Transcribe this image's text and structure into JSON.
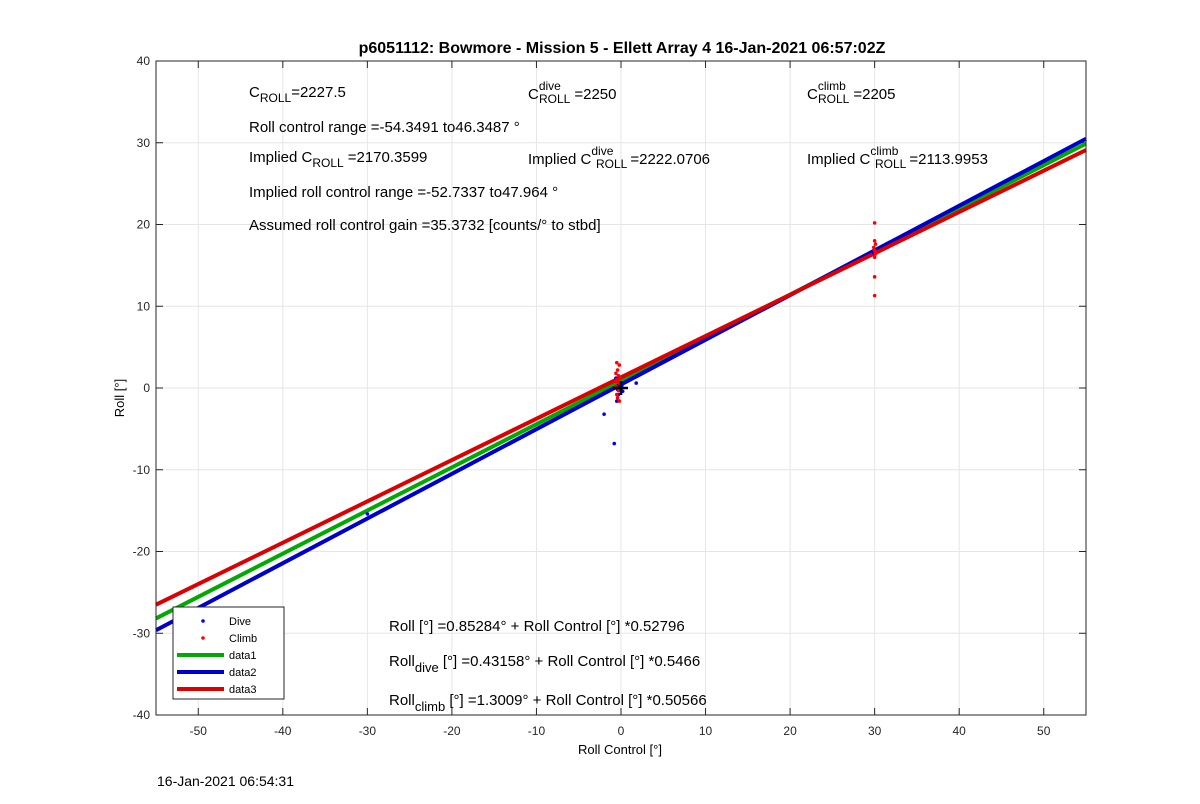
{
  "footer_timestamp": "16-Jan-2021 06:54:31",
  "chart_data": {
    "type": "scatter",
    "title": "p6051112: Bowmore - Mission 5 - Ellett Array 4 16-Jan-2021 06:57:02Z",
    "xlabel": "Roll Control [°]",
    "ylabel": "Roll [°]",
    "xlim": [
      -55,
      55
    ],
    "ylim": [
      -40,
      40
    ],
    "xticks": [
      -50,
      -40,
      -30,
      -20,
      -10,
      0,
      10,
      20,
      30,
      40,
      50
    ],
    "yticks": [
      -40,
      -30,
      -20,
      -10,
      0,
      10,
      20,
      30,
      40
    ],
    "grid": true,
    "legend_location": "bottom-left",
    "scatter_series": [
      {
        "name": "Dive",
        "color": "#0000ff",
        "marker": "dot",
        "points": [
          [
            -30,
            -15.4
          ],
          [
            -2,
            -3.2
          ],
          [
            -0.8,
            -6.8
          ],
          [
            -0.5,
            -1.6
          ],
          [
            -0.3,
            -0.8
          ],
          [
            -0.5,
            0.2
          ],
          [
            -0.2,
            0.6
          ],
          [
            0.2,
            -0.4
          ],
          [
            -0.6,
            1.2
          ],
          [
            -0.4,
            -0.2
          ],
          [
            0.1,
            0.3
          ],
          [
            1.8,
            0.6
          ],
          [
            30,
            16.8
          ],
          [
            29.9,
            16.5
          ]
        ]
      },
      {
        "name": "Climb",
        "color": "#ff0000",
        "marker": "dot",
        "points": [
          [
            -0.5,
            3.1
          ],
          [
            -0.2,
            2.8
          ],
          [
            -0.4,
            2.2
          ],
          [
            -0.6,
            1.8
          ],
          [
            -0.3,
            1.5
          ],
          [
            -0.5,
            1.0
          ],
          [
            -0.2,
            0.6
          ],
          [
            -0.6,
            0.2
          ],
          [
            -0.3,
            -0.3
          ],
          [
            -0.5,
            -0.8
          ],
          [
            -0.4,
            -1.2
          ],
          [
            -0.2,
            -1.6
          ],
          [
            -0.6,
            0.8
          ],
          [
            -0.1,
            1.3
          ],
          [
            30,
            20.2
          ],
          [
            30,
            18.0
          ],
          [
            30.1,
            17.6
          ],
          [
            29.9,
            17.2
          ],
          [
            30,
            16.8
          ],
          [
            30.1,
            16.4
          ],
          [
            30,
            16.0
          ],
          [
            30,
            13.6
          ],
          [
            30,
            11.3
          ]
        ]
      }
    ],
    "line_series": [
      {
        "name": "data1",
        "color": "#00aa00",
        "intercept": 0.85284,
        "slope": 0.52796
      },
      {
        "name": "data2",
        "color": "#0000cc",
        "intercept": 0.43158,
        "slope": 0.5466
      },
      {
        "name": "data3",
        "color": "#dd0000",
        "intercept": 1.3009,
        "slope": 0.50566
      }
    ],
    "center_marker": "+",
    "annotations": {
      "c_roll": {
        "base": "C",
        "sub": "ROLL",
        "value": "=2227.5"
      },
      "c_roll_dive": {
        "base": "C",
        "sup": "dive",
        "sub": "ROLL",
        "value": "=2250"
      },
      "c_roll_climb": {
        "base": "C",
        "sup": "climb",
        "sub": "ROLL",
        "value": "=2205"
      },
      "roll_control_range": "Roll control range =-54.3491 to46.3487 °",
      "implied_c_roll": {
        "prefix": "Implied C",
        "sub": "ROLL",
        "value": "=2170.3599"
      },
      "implied_c_roll_dive": {
        "prefix": "Implied C",
        "sup": "dive",
        "sub": "ROLL",
        "value": "=2222.0706"
      },
      "implied_c_roll_climb": {
        "prefix": "Implied C",
        "sup": "climb",
        "sub": "ROLL",
        "value": "=2113.9953"
      },
      "implied_range": "Implied roll control range =-52.7337 to47.964 °",
      "assumed_gain": "Assumed roll control gain =35.3732 [counts/° to stbd]",
      "fit_all": {
        "pre": "Roll [°] =0.85284° + Roll Control [°] *0.52796"
      },
      "fit_dive": {
        "base": "Roll",
        "sub": "dive",
        "rest": " [°] =0.43158° + Roll Control [°] *0.5466"
      },
      "fit_climb": {
        "base": "Roll",
        "sub": "climb",
        "rest": " [°] =1.3009° + Roll Control [°] *0.50566"
      }
    }
  }
}
